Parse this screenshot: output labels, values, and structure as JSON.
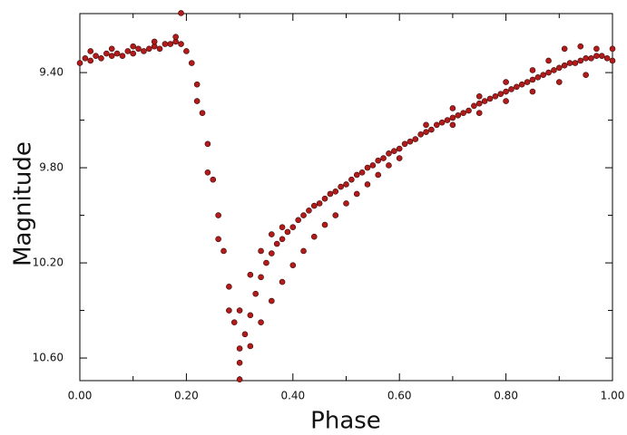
{
  "chart_data": {
    "type": "scatter",
    "x_label": "Phase",
    "y_label": "Magnitude",
    "xlim": [
      0,
      1
    ],
    "ylim": [
      10.695,
      9.152
    ],
    "xticks": [
      {
        "value": 0,
        "label": "0.00"
      },
      {
        "value": 0.2,
        "label": "0.20"
      },
      {
        "value": 0.4,
        "label": "0.40"
      },
      {
        "value": 0.6,
        "label": "0.60"
      },
      {
        "value": 0.8,
        "label": "0.80"
      },
      {
        "value": 1,
        "label": "1.00"
      }
    ],
    "xticks_minor": [
      0.1,
      0.3,
      0.5,
      0.7,
      0.9
    ],
    "yticks": [
      {
        "value": 9.4,
        "label": "9.40"
      },
      {
        "value": 9.8,
        "label": "9.80"
      },
      {
        "value": 10.2,
        "label": "10.20"
      },
      {
        "value": 10.6,
        "label": "10.60"
      }
    ],
    "yticks_minor": [
      9.6,
      10.0,
      10.4
    ],
    "series": [
      {
        "color": "#b31b1b",
        "x": [
          0.0,
          0.01,
          0.02,
          0.03,
          0.04,
          0.05,
          0.06,
          0.07,
          0.08,
          0.09,
          0.1,
          0.11,
          0.12,
          0.13,
          0.14,
          0.15,
          0.16,
          0.17,
          0.18,
          0.19,
          0.2,
          0.21,
          0.22,
          0.23,
          0.24,
          0.25,
          0.26,
          0.27,
          0.28,
          0.29,
          0.3,
          0.31,
          0.32,
          0.33,
          0.34,
          0.35,
          0.36,
          0.37,
          0.38,
          0.39,
          0.4,
          0.41,
          0.42,
          0.43,
          0.44,
          0.45,
          0.46,
          0.47,
          0.48,
          0.49,
          0.5,
          0.51,
          0.52,
          0.53,
          0.54,
          0.55,
          0.56,
          0.57,
          0.58,
          0.59,
          0.6,
          0.61,
          0.62,
          0.63,
          0.64,
          0.65,
          0.66,
          0.67,
          0.68,
          0.69,
          0.7,
          0.71,
          0.72,
          0.73,
          0.74,
          0.75,
          0.76,
          0.77,
          0.78,
          0.79,
          0.8,
          0.81,
          0.82,
          0.83,
          0.84,
          0.85,
          0.86,
          0.87,
          0.88,
          0.89,
          0.9,
          0.91,
          0.92,
          0.93,
          0.94,
          0.95,
          0.96,
          0.97,
          0.98,
          0.99,
          1.0,
          0.22,
          0.24,
          0.26,
          0.28,
          0.3,
          0.32,
          0.34,
          0.36,
          0.38,
          0.4,
          0.42,
          0.44,
          0.46,
          0.48,
          0.5,
          0.52,
          0.54,
          0.56,
          0.58,
          0.6,
          0.02,
          0.06,
          0.1,
          0.14,
          0.18,
          0.3,
          0.32,
          0.34,
          0.36,
          0.38,
          0.65,
          0.7,
          0.75,
          0.8,
          0.85,
          0.88,
          0.91,
          0.94,
          0.97,
          1.0,
          0.7,
          0.75,
          0.8,
          0.85,
          0.9,
          0.95,
          0.19,
          0.3
        ],
        "values": [
          9.36,
          9.34,
          9.35,
          9.33,
          9.34,
          9.32,
          9.33,
          9.32,
          9.33,
          9.31,
          9.32,
          9.3,
          9.31,
          9.3,
          9.29,
          9.3,
          9.28,
          9.28,
          9.27,
          9.28,
          9.31,
          9.36,
          9.45,
          9.57,
          9.7,
          9.85,
          10.0,
          10.15,
          10.3,
          10.45,
          10.56,
          10.5,
          10.42,
          10.33,
          10.26,
          10.2,
          10.16,
          10.12,
          10.1,
          10.07,
          10.05,
          10.02,
          10.0,
          9.98,
          9.96,
          9.95,
          9.93,
          9.91,
          9.9,
          9.88,
          9.87,
          9.85,
          9.83,
          9.82,
          9.8,
          9.79,
          9.77,
          9.76,
          9.74,
          9.73,
          9.72,
          9.7,
          9.69,
          9.68,
          9.66,
          9.65,
          9.64,
          9.62,
          9.61,
          9.6,
          9.59,
          9.58,
          9.57,
          9.56,
          9.54,
          9.53,
          9.52,
          9.51,
          9.5,
          9.49,
          9.48,
          9.47,
          9.46,
          9.45,
          9.44,
          9.43,
          9.42,
          9.41,
          9.4,
          9.39,
          9.38,
          9.37,
          9.36,
          9.36,
          9.35,
          9.34,
          9.34,
          9.33,
          9.33,
          9.34,
          9.35,
          9.52,
          9.82,
          10.1,
          10.4,
          10.62,
          10.55,
          10.45,
          10.36,
          10.28,
          10.21,
          10.15,
          10.09,
          10.04,
          10.0,
          9.95,
          9.91,
          9.87,
          9.83,
          9.79,
          9.76,
          9.31,
          9.3,
          9.29,
          9.27,
          9.25,
          10.4,
          10.25,
          10.15,
          10.08,
          10.05,
          9.62,
          9.55,
          9.5,
          9.44,
          9.39,
          9.35,
          9.3,
          9.29,
          9.3,
          9.3,
          9.62,
          9.57,
          9.52,
          9.48,
          9.44,
          9.41,
          9.15,
          10.69
        ]
      }
    ]
  }
}
